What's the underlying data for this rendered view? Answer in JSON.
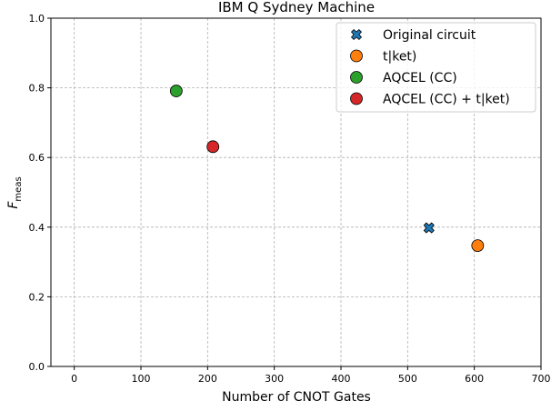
{
  "chart_data": {
    "type": "scatter",
    "title": "IBM Q Sydney Machine",
    "xlabel": "Number of CNOT Gates",
    "ylabel_main": "F",
    "ylabel_sub": "meas",
    "xlim": [
      -35,
      700
    ],
    "ylim": [
      0.0,
      1.0
    ],
    "xticks": [
      0,
      100,
      200,
      300,
      400,
      500,
      600,
      700
    ],
    "yticks": [
      0.0,
      0.2,
      0.4,
      0.6,
      0.8,
      1.0
    ],
    "xtick_labels": [
      "0",
      "100",
      "200",
      "300",
      "400",
      "500",
      "600",
      "700"
    ],
    "ytick_labels": [
      "0.0",
      "0.2",
      "0.4",
      "0.6",
      "0.8",
      "1.0"
    ],
    "grid": true,
    "legend_position": "top-right",
    "series": [
      {
        "name": "Original circuit",
        "marker": "x",
        "color": "#1f77b4",
        "x": 532,
        "y": 0.398
      },
      {
        "name": "t|ket)",
        "marker": "circle",
        "color": "#ff7f0e",
        "x": 605,
        "y": 0.347
      },
      {
        "name": "AQCEL (CC)",
        "marker": "circle",
        "color": "#2ca02c",
        "x": 153,
        "y": 0.791
      },
      {
        "name": "AQCEL (CC) + t|ket)",
        "marker": "circle",
        "color": "#d62728",
        "x": 208,
        "y": 0.631
      }
    ]
  }
}
